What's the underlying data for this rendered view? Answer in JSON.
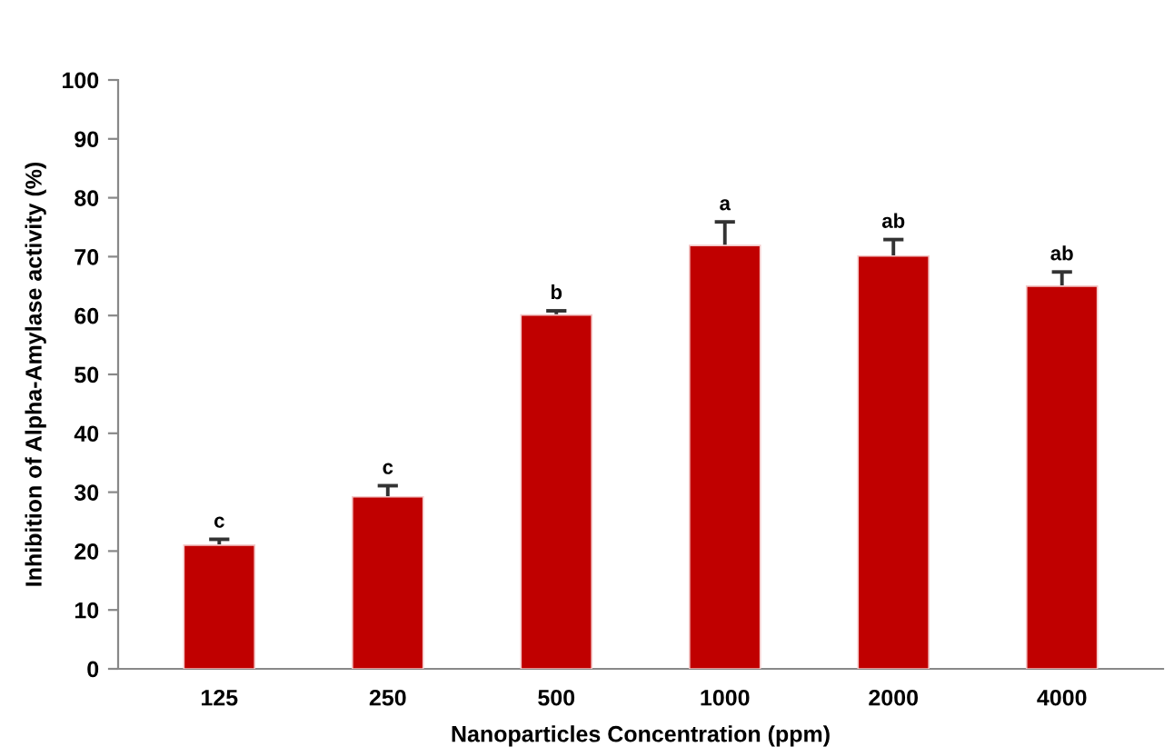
{
  "chart_data": {
    "type": "bar",
    "xlabel": "Nanoparticles Concentration (ppm)",
    "ylabel": "Inhibition of Alpha-Amylase activity (%)",
    "categories": [
      "125",
      "250",
      "500",
      "1000",
      "2000",
      "4000"
    ],
    "values": [
      21.0,
      29.2,
      60.1,
      71.9,
      70.1,
      65.0
    ],
    "errors": [
      1.0,
      1.9,
      0.7,
      4.0,
      2.8,
      2.4
    ],
    "color": "#c00000",
    "ylim": [
      0,
      100
    ],
    "yticks": [
      0,
      10,
      20,
      30,
      40,
      50,
      60,
      70,
      80,
      90,
      100
    ],
    "grid": false,
    "annotations": [
      {
        "text": "c",
        "x": "125",
        "y": 22.0
      },
      {
        "text": "c",
        "x": "250",
        "y": 31.1
      },
      {
        "text": "b",
        "x": "500",
        "y": 60.8
      },
      {
        "text": "a",
        "x": "1000",
        "y": 75.9
      },
      {
        "text": "ab",
        "x": "2000",
        "y": 72.9
      },
      {
        "text": "ab",
        "x": "4000",
        "y": 67.4
      }
    ]
  }
}
